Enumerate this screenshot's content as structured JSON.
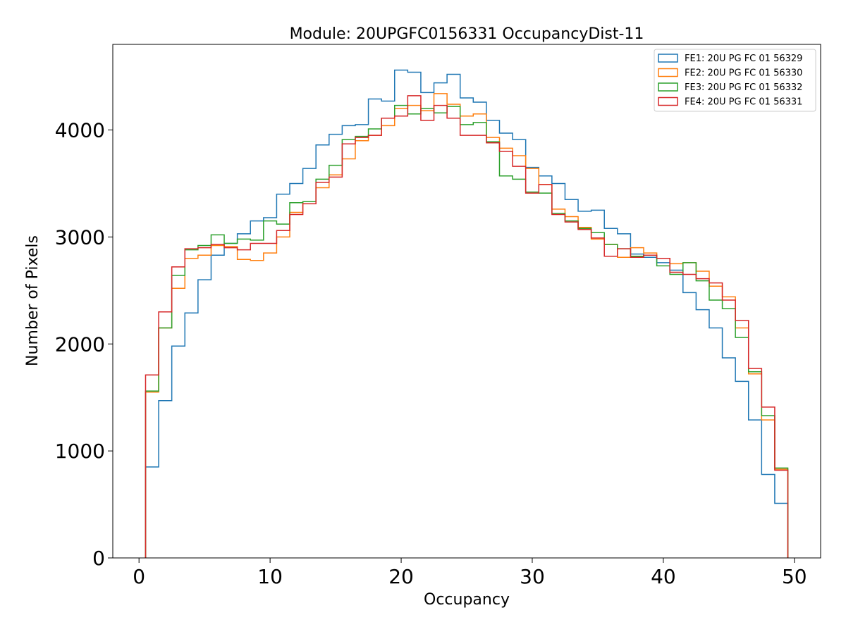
{
  "chart_data": {
    "type": "histogram",
    "title": "Module: 20UPGFC0156331 OccupancyDist-11",
    "xlabel": "Occupancy",
    "ylabel": "Number of Pixels",
    "xlim": [
      -2,
      52
    ],
    "ylim": [
      0,
      4800
    ],
    "xticks": [
      0,
      10,
      20,
      30,
      40,
      50
    ],
    "yticks": [
      0,
      1000,
      2000,
      3000,
      4000
    ],
    "bin_edges": [
      0.5,
      1.5,
      2.5,
      3.5,
      4.5,
      5.5,
      6.5,
      7.5,
      8.5,
      9.5,
      10.5,
      11.5,
      12.5,
      13.5,
      14.5,
      15.5,
      16.5,
      17.5,
      18.5,
      19.5,
      20.5,
      21.5,
      22.5,
      23.5,
      24.5,
      25.5,
      26.5,
      27.5,
      28.5,
      29.5,
      30.5,
      31.5,
      32.5,
      33.5,
      34.5,
      35.5,
      36.5,
      37.5,
      38.5,
      39.5,
      40.5,
      41.5,
      42.5,
      43.5,
      44.5,
      45.5,
      46.5,
      47.5,
      48.5,
      49.5
    ],
    "grid": false,
    "legend_position": "top-right",
    "series": [
      {
        "name": "FE1: 20U PG FC 01 56329",
        "color": "#1f77b4",
        "values": [
          850,
          1470,
          1980,
          2290,
          2600,
          2830,
          2940,
          3030,
          3150,
          3180,
          3400,
          3500,
          3640,
          3860,
          3960,
          4040,
          4050,
          4290,
          4270,
          4560,
          4540,
          4350,
          4440,
          4520,
          4300,
          4260,
          4090,
          3970,
          3910,
          3650,
          3570,
          3500,
          3350,
          3240,
          3250,
          3080,
          3030,
          2840,
          2810,
          2760,
          2690,
          2480,
          2320,
          2150,
          1870,
          1650,
          1290,
          780,
          510
        ]
      },
      {
        "name": "FE2: 20U PG FC 01 56330",
        "color": "#ff7f0e",
        "values": [
          1550,
          2150,
          2520,
          2800,
          2830,
          2920,
          2910,
          2790,
          2780,
          2850,
          3000,
          3230,
          3330,
          3460,
          3580,
          3730,
          3900,
          3950,
          4040,
          4200,
          4230,
          4180,
          4340,
          4240,
          4130,
          4150,
          3930,
          3830,
          3760,
          3640,
          3490,
          3260,
          3190,
          3090,
          2980,
          2930,
          2810,
          2900,
          2850,
          2800,
          2750,
          2760,
          2680,
          2540,
          2440,
          2150,
          1720,
          1290,
          830
        ]
      },
      {
        "name": "FE3: 20U PG FC 01 56332",
        "color": "#2ca02c",
        "values": [
          1560,
          2150,
          2640,
          2880,
          2920,
          3020,
          2940,
          2980,
          2970,
          3150,
          3120,
          3320,
          3330,
          3540,
          3670,
          3910,
          3940,
          4010,
          4110,
          4230,
          4150,
          4200,
          4160,
          4220,
          4050,
          4070,
          3890,
          3570,
          3540,
          3420,
          3410,
          3220,
          3150,
          3080,
          3040,
          2930,
          2890,
          2820,
          2830,
          2730,
          2650,
          2760,
          2590,
          2410,
          2330,
          2060,
          1740,
          1330,
          840
        ]
      },
      {
        "name": "FE4: 20U PG FC 01 56331",
        "color": "#d62728",
        "values": [
          1710,
          2300,
          2720,
          2890,
          2900,
          2930,
          2900,
          2880,
          2940,
          2940,
          3060,
          3210,
          3310,
          3510,
          3560,
          3870,
          3930,
          3950,
          4110,
          4130,
          4320,
          4090,
          4230,
          4110,
          3950,
          3950,
          3880,
          3800,
          3660,
          3410,
          3490,
          3210,
          3140,
          3070,
          2990,
          2820,
          2890,
          2810,
          2830,
          2800,
          2670,
          2650,
          2610,
          2570,
          2410,
          2220,
          1770,
          1410,
          820
        ]
      }
    ]
  }
}
